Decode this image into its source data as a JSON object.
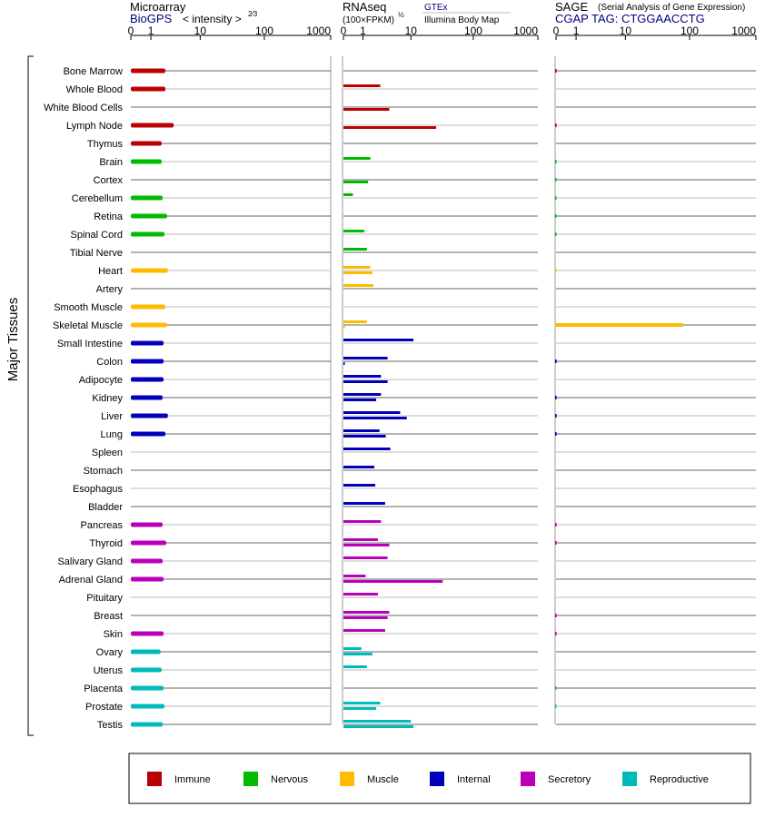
{
  "headers": {
    "microarray": {
      "title": "Microarray",
      "source": "BioGPS",
      "metric": "< intensity >",
      "metric_exp": "2⁄3"
    },
    "rnaseq": {
      "title": "RNAseq",
      "metric": "(100×FPKM)",
      "metric_exp": "½",
      "source1": "GTEx",
      "source2": "Illumina Body Map"
    },
    "sage": {
      "title": "SAGE",
      "subtitle": "(Serial Analysis of Gene Expression)",
      "tag_line": "CGAP TAG: CTGGAACCTG"
    }
  },
  "axis_ticks": [
    "0",
    "1",
    "10",
    "100",
    "1000"
  ],
  "y_group_label": "Major Tissues",
  "colors": {
    "Immune": "#bb0000",
    "Nervous": "#00bb00",
    "Muscle": "#ffbb00",
    "Internal": "#0000bb",
    "Secretory": "#bb00bb",
    "Reproductive": "#00bbbb"
  },
  "legend": [
    {
      "label": "Immune",
      "color": "#bb0000"
    },
    {
      "label": "Nervous",
      "color": "#00bb00"
    },
    {
      "label": "Muscle",
      "color": "#ffbb00"
    },
    {
      "label": "Internal",
      "color": "#0000bb"
    },
    {
      "label": "Secretory",
      "color": "#bb00bb"
    },
    {
      "label": "Reproductive",
      "color": "#00bbbb"
    }
  ],
  "chart_data": {
    "type": "bar",
    "orientation": "horizontal",
    "axis_scale": "log(1+x)",
    "xlim": [
      0,
      1000
    ],
    "tissues": [
      {
        "name": "Bone Marrow",
        "group": "Immune",
        "microarray": 2.3,
        "rnaseq_gtex": null,
        "rnaseq_ibm": null,
        "sage": 0.02
      },
      {
        "name": "Whole Blood",
        "group": "Immune",
        "microarray": 2.3,
        "rnaseq_gtex": 2.7,
        "rnaseq_ibm": null,
        "sage": null
      },
      {
        "name": "White Blood Cells",
        "group": "Immune",
        "microarray": null,
        "rnaseq_gtex": null,
        "rnaseq_ibm": 4.1,
        "sage": null
      },
      {
        "name": "Lymph Node",
        "group": "Immune",
        "microarray": 3.4,
        "rnaseq_gtex": null,
        "rnaseq_ibm": 26,
        "sage": 0.02
      },
      {
        "name": "Thymus",
        "group": "Immune",
        "microarray": 1.9,
        "rnaseq_gtex": null,
        "rnaseq_ibm": null,
        "sage": null
      },
      {
        "name": "Brain",
        "group": "Nervous",
        "microarray": 1.9,
        "rnaseq_gtex": 1.6,
        "rnaseq_ibm": null,
        "sage": 0.01
      },
      {
        "name": "Cortex",
        "group": "Nervous",
        "microarray": null,
        "rnaseq_gtex": null,
        "rnaseq_ibm": 1.4,
        "sage": 0.01
      },
      {
        "name": "Cerebellum",
        "group": "Nervous",
        "microarray": 2.0,
        "rnaseq_gtex": 0.4,
        "rnaseq_ibm": null,
        "sage": 0.01
      },
      {
        "name": "Retina",
        "group": "Nervous",
        "microarray": 2.5,
        "rnaseq_gtex": null,
        "rnaseq_ibm": null,
        "sage": 0.01
      },
      {
        "name": "Spinal Cord",
        "group": "Nervous",
        "microarray": 2.2,
        "rnaseq_gtex": 1.1,
        "rnaseq_ibm": null,
        "sage": 0.01
      },
      {
        "name": "Tibial Nerve",
        "group": "Nervous",
        "microarray": null,
        "rnaseq_gtex": 1.3,
        "rnaseq_ibm": null,
        "sage": null
      },
      {
        "name": "Heart",
        "group": "Muscle",
        "microarray": 2.6,
        "rnaseq_gtex": 1.6,
        "rnaseq_ibm": 1.8,
        "sage": 0.01
      },
      {
        "name": "Artery",
        "group": "Muscle",
        "microarray": null,
        "rnaseq_gtex": 1.9,
        "rnaseq_ibm": null,
        "sage": null
      },
      {
        "name": "Smooth Muscle",
        "group": "Muscle",
        "microarray": 2.3,
        "rnaseq_gtex": null,
        "rnaseq_ibm": null,
        "sage": null
      },
      {
        "name": "Skeletal Muscle",
        "group": "Muscle",
        "microarray": 2.5,
        "rnaseq_gtex": 1.3,
        "rnaseq_ibm": 0.05,
        "sage": 80
      },
      {
        "name": "Small Intestine",
        "group": "Internal",
        "microarray": 2.1,
        "rnaseq_gtex": 11,
        "rnaseq_ibm": null,
        "sage": null
      },
      {
        "name": "Colon",
        "group": "Internal",
        "microarray": 2.1,
        "rnaseq_gtex": 3.8,
        "rnaseq_ibm": 0.05,
        "sage": 0.02
      },
      {
        "name": "Adipocyte",
        "group": "Internal",
        "microarray": 2.1,
        "rnaseq_gtex": 2.8,
        "rnaseq_ibm": 3.8,
        "sage": null
      },
      {
        "name": "Kidney",
        "group": "Internal",
        "microarray": 2.0,
        "rnaseq_gtex": 2.8,
        "rnaseq_ibm": 2.2,
        "sage": 0.02
      },
      {
        "name": "Liver",
        "group": "Internal",
        "microarray": 2.6,
        "rnaseq_gtex": 6.5,
        "rnaseq_ibm": 8.5,
        "sage": 0.02
      },
      {
        "name": "Lung",
        "group": "Internal",
        "microarray": 2.3,
        "rnaseq_gtex": 2.6,
        "rnaseq_ibm": 3.5,
        "sage": 0.02
      },
      {
        "name": "Spleen",
        "group": "Internal",
        "microarray": null,
        "rnaseq_gtex": 4.3,
        "rnaseq_ibm": null,
        "sage": null
      },
      {
        "name": "Stomach",
        "group": "Internal",
        "microarray": null,
        "rnaseq_gtex": 2.0,
        "rnaseq_ibm": null,
        "sage": null
      },
      {
        "name": "Esophagus",
        "group": "Internal",
        "microarray": null,
        "rnaseq_gtex": 2.1,
        "rnaseq_ibm": null,
        "sage": null
      },
      {
        "name": "Bladder",
        "group": "Internal",
        "microarray": null,
        "rnaseq_gtex": 3.4,
        "rnaseq_ibm": null,
        "sage": null
      },
      {
        "name": "Pancreas",
        "group": "Secretory",
        "microarray": 2.0,
        "rnaseq_gtex": 2.8,
        "rnaseq_ibm": null,
        "sage": 0.02
      },
      {
        "name": "Thyroid",
        "group": "Secretory",
        "microarray": 2.4,
        "rnaseq_gtex": 2.4,
        "rnaseq_ibm": 4.1,
        "sage": 0.02
      },
      {
        "name": "Salivary Gland",
        "group": "Secretory",
        "microarray": 2.0,
        "rnaseq_gtex": 3.8,
        "rnaseq_ibm": null,
        "sage": null
      },
      {
        "name": "Adrenal Gland",
        "group": "Secretory",
        "microarray": 2.1,
        "rnaseq_gtex": 1.2,
        "rnaseq_ibm": 33,
        "sage": null
      },
      {
        "name": "Pituitary",
        "group": "Secretory",
        "microarray": null,
        "rnaseq_gtex": 2.4,
        "rnaseq_ibm": null,
        "sage": null
      },
      {
        "name": "Breast",
        "group": "Secretory",
        "microarray": null,
        "rnaseq_gtex": 4.1,
        "rnaseq_ibm": 3.8,
        "sage": 0.02
      },
      {
        "name": "Skin",
        "group": "Secretory",
        "microarray": 2.1,
        "rnaseq_gtex": 3.4,
        "rnaseq_ibm": null,
        "sage": 0.02
      },
      {
        "name": "Ovary",
        "group": "Reproductive",
        "microarray": 1.8,
        "rnaseq_gtex": 0.9,
        "rnaseq_ibm": 1.8,
        "sage": null
      },
      {
        "name": "Uterus",
        "group": "Reproductive",
        "microarray": 1.9,
        "rnaseq_gtex": 1.3,
        "rnaseq_ibm": null,
        "sage": null
      },
      {
        "name": "Placenta",
        "group": "Reproductive",
        "microarray": 2.1,
        "rnaseq_gtex": null,
        "rnaseq_ibm": null,
        "sage": 0.01
      },
      {
        "name": "Prostate",
        "group": "Reproductive",
        "microarray": 2.2,
        "rnaseq_gtex": 2.7,
        "rnaseq_ibm": 2.2,
        "sage": 0.01
      },
      {
        "name": "Testis",
        "group": "Reproductive",
        "microarray": 2.0,
        "rnaseq_gtex": 10,
        "rnaseq_ibm": 11,
        "sage": null
      }
    ]
  }
}
